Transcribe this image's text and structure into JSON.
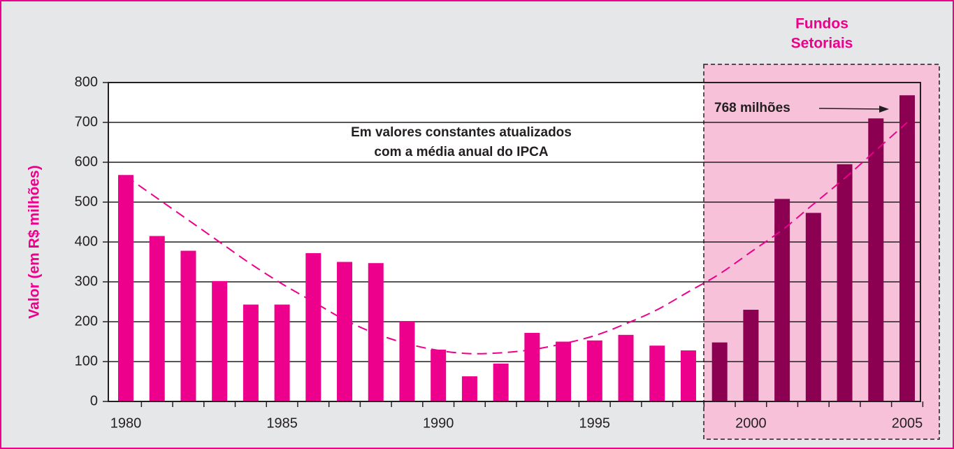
{
  "chart_data": {
    "type": "bar",
    "y_label": "Valor (em R$ milhões)",
    "categories": [
      "1980",
      null,
      null,
      null,
      null,
      "1985",
      null,
      null,
      null,
      null,
      "1990",
      null,
      null,
      null,
      null,
      "1995",
      null,
      null,
      null,
      null,
      "2000",
      null,
      null,
      null,
      null,
      "2005"
    ],
    "values": [
      568,
      415,
      378,
      302,
      243,
      243,
      372,
      350,
      347,
      200,
      130,
      63,
      95,
      172,
      150,
      153,
      167,
      140,
      128,
      148,
      230,
      508,
      473,
      595,
      710,
      768
    ],
    "colors": [
      "#ec008c",
      "#ec008c",
      "#ec008c",
      "#ec008c",
      "#ec008c",
      "#ec008c",
      "#ec008c",
      "#ec008c",
      "#ec008c",
      "#ec008c",
      "#ec008c",
      "#ec008c",
      "#ec008c",
      "#ec008c",
      "#ec008c",
      "#ec008c",
      "#ec008c",
      "#ec008c",
      "#ec008c",
      "#8b0051",
      "#8b0051",
      "#8b0051",
      "#8b0051",
      "#8b0051",
      "#8b0051",
      "#8b0051"
    ],
    "trend": {
      "color": "#ec008c",
      "dashed": true,
      "values": [
        565,
        510,
        455,
        400,
        345,
        295,
        250,
        205,
        170,
        145,
        128,
        120,
        122,
        130,
        145,
        165,
        195,
        230,
        275,
        320,
        375,
        430,
        495,
        560,
        630,
        700
      ]
    },
    "ylim": [
      0,
      800
    ],
    "yticks": [
      0,
      100,
      200,
      300,
      400,
      500,
      600,
      700,
      800
    ],
    "grid": true,
    "annotations": {
      "note": [
        "Em valores constantes atualizados",
        "com a média anual do IPCA"
      ],
      "peak": "768 milhões",
      "region": [
        "Fundos",
        "Setoriais"
      ]
    }
  }
}
